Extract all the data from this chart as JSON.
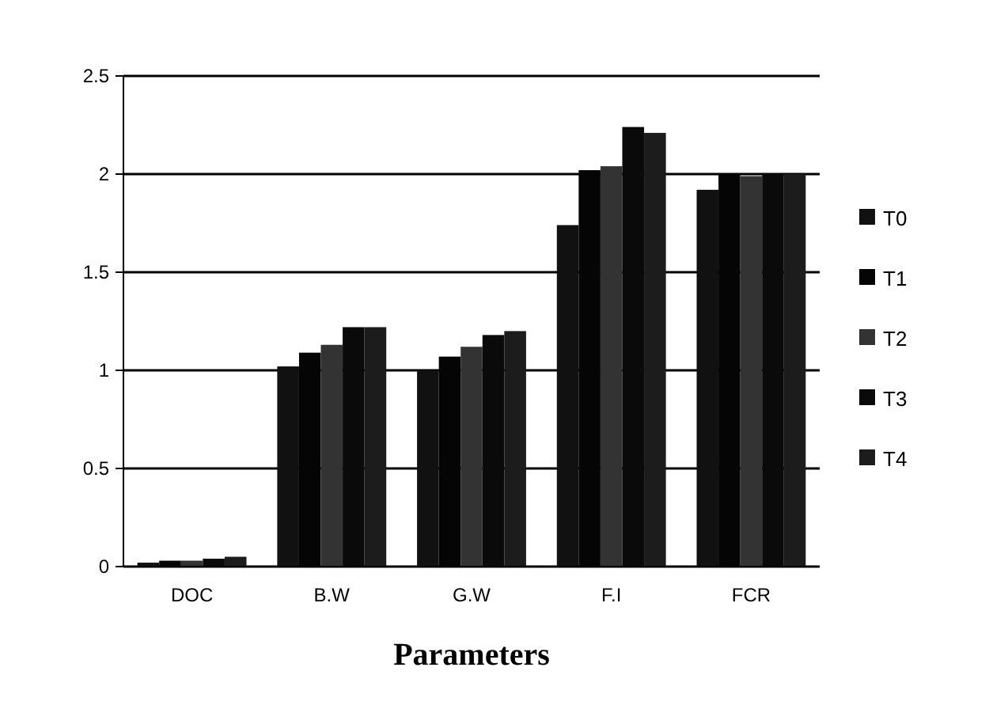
{
  "chart_data": {
    "type": "bar",
    "xlabel": "Parameters",
    "categories": [
      "DOC",
      "B.W",
      "G.W",
      "F.I",
      "FCR"
    ],
    "series": [
      {
        "name": "T0",
        "color": "#111111",
        "values": [
          0.02,
          1.02,
          1.0,
          1.74,
          1.92
        ]
      },
      {
        "name": "T1",
        "color": "#050505",
        "values": [
          0.03,
          1.09,
          1.07,
          2.02,
          2.0
        ]
      },
      {
        "name": "T2",
        "color": "#333333",
        "values": [
          0.03,
          1.13,
          1.12,
          2.04,
          1.99
        ]
      },
      {
        "name": "T3",
        "color": "#0a0a0a",
        "values": [
          0.04,
          1.22,
          1.18,
          2.24,
          2.0
        ]
      },
      {
        "name": "T4",
        "color": "#1c1c1c",
        "values": [
          0.05,
          1.22,
          1.2,
          2.21,
          2.0
        ]
      }
    ],
    "ylim": [
      0,
      2.5
    ],
    "yticks": [
      0,
      0.5,
      1,
      1.5,
      2,
      2.5
    ],
    "grid": "y",
    "legend": "right"
  }
}
